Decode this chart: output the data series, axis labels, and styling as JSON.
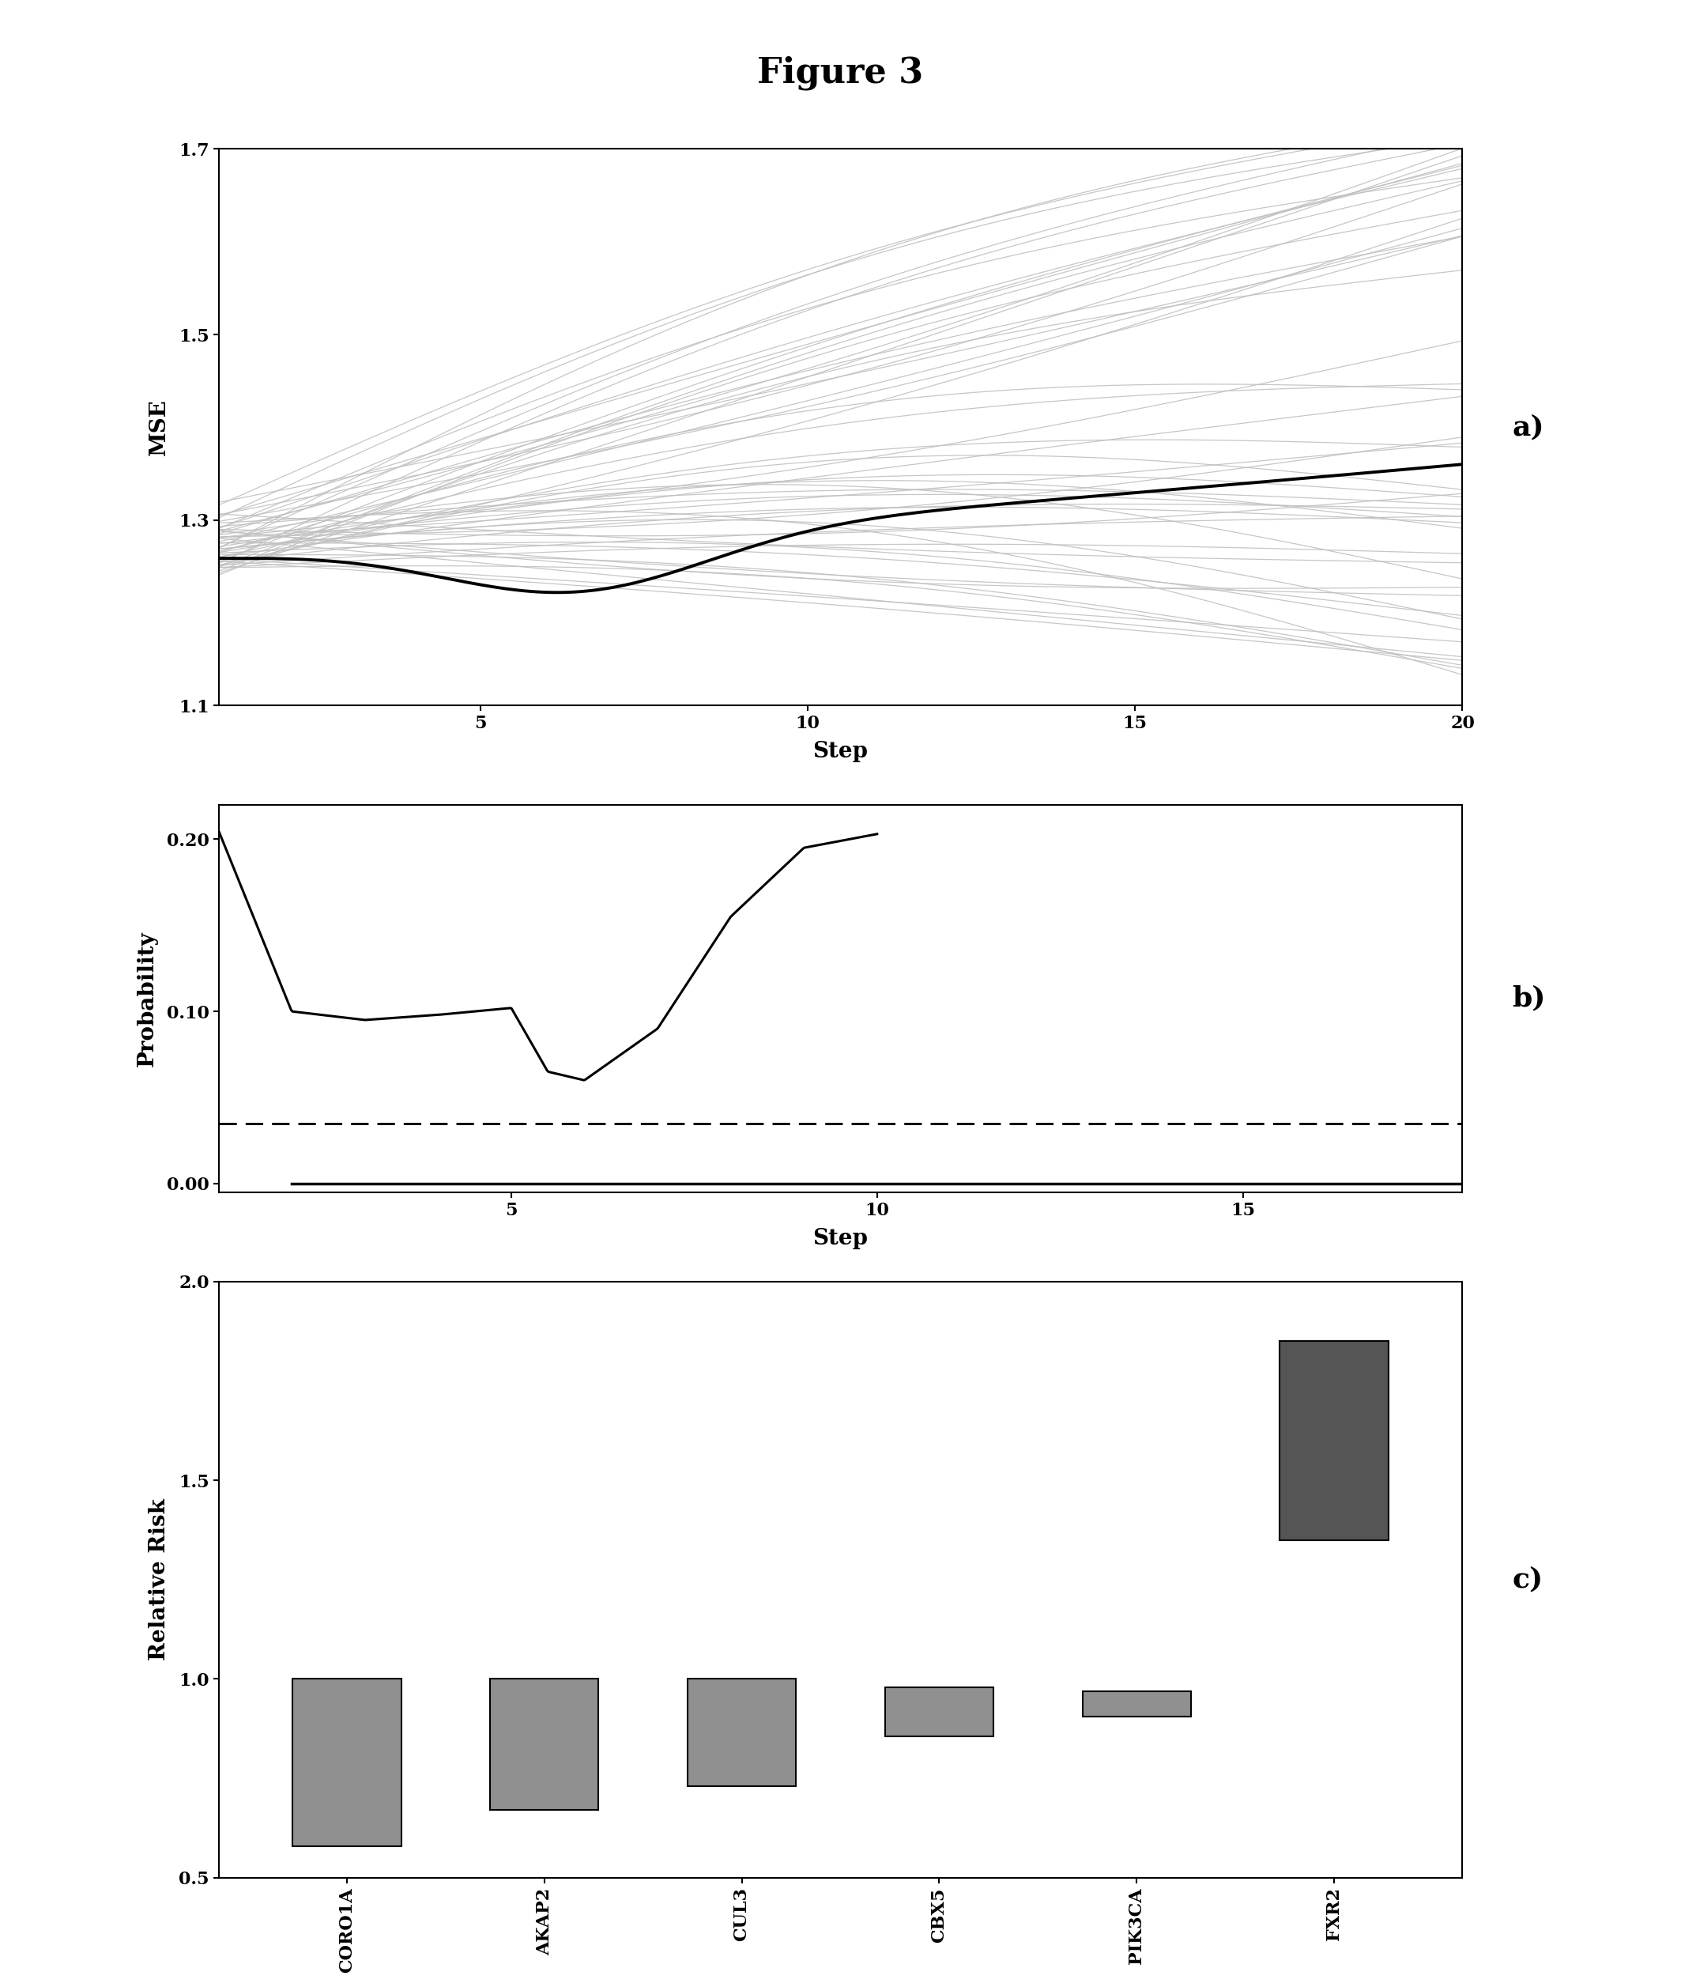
{
  "figure_title": "Figure 3",
  "panel_a": {
    "xlabel": "Step",
    "ylabel": "MSE",
    "xlim": [
      1,
      20
    ],
    "ylim": [
      1.1,
      1.7
    ],
    "yticks": [
      1.1,
      1.3,
      1.5,
      1.7
    ],
    "xticks": [
      5,
      10,
      15,
      20
    ],
    "label": "a)",
    "n_grey": 50,
    "mean_start": 1.26,
    "mean_dip": 1.2,
    "mean_end": 1.35,
    "mean_dip_x": 7
  },
  "panel_b": {
    "xlabel": "Step",
    "ylabel": "Probability",
    "xlim": [
      1,
      18
    ],
    "ylim": [
      -0.005,
      0.22
    ],
    "yticks": [
      0.0,
      0.1,
      0.2
    ],
    "ytick_labels": [
      "0.00",
      "0.10",
      "0.20"
    ],
    "xticks": [
      5,
      10,
      15
    ],
    "dashed_line_y": 0.035,
    "label": "b)",
    "prob_x": [
      1,
      2,
      3,
      4,
      5,
      5.5,
      6,
      7,
      8,
      9,
      10
    ],
    "prob_y": [
      0.205,
      0.1,
      0.095,
      0.098,
      0.102,
      0.065,
      0.06,
      0.09,
      0.155,
      0.195,
      0.203
    ]
  },
  "panel_c": {
    "xlabel": "",
    "ylabel": "Relative Risk",
    "ylim": [
      0.5,
      2.0
    ],
    "yticks": [
      0.5,
      1.0,
      1.5,
      2.0
    ],
    "label": "c)",
    "genes": [
      "CORO1A",
      "AKAP2",
      "CUL3",
      "CBX5",
      "PIK3CA",
      "FXR2"
    ],
    "lower": [
      0.58,
      0.67,
      0.73,
      0.855,
      0.905,
      1.35
    ],
    "upper": [
      1.0,
      1.0,
      1.0,
      0.98,
      0.97,
      1.85
    ],
    "colors": [
      "#909090",
      "#909090",
      "#909090",
      "#909090",
      "#909090",
      "#555555"
    ]
  }
}
